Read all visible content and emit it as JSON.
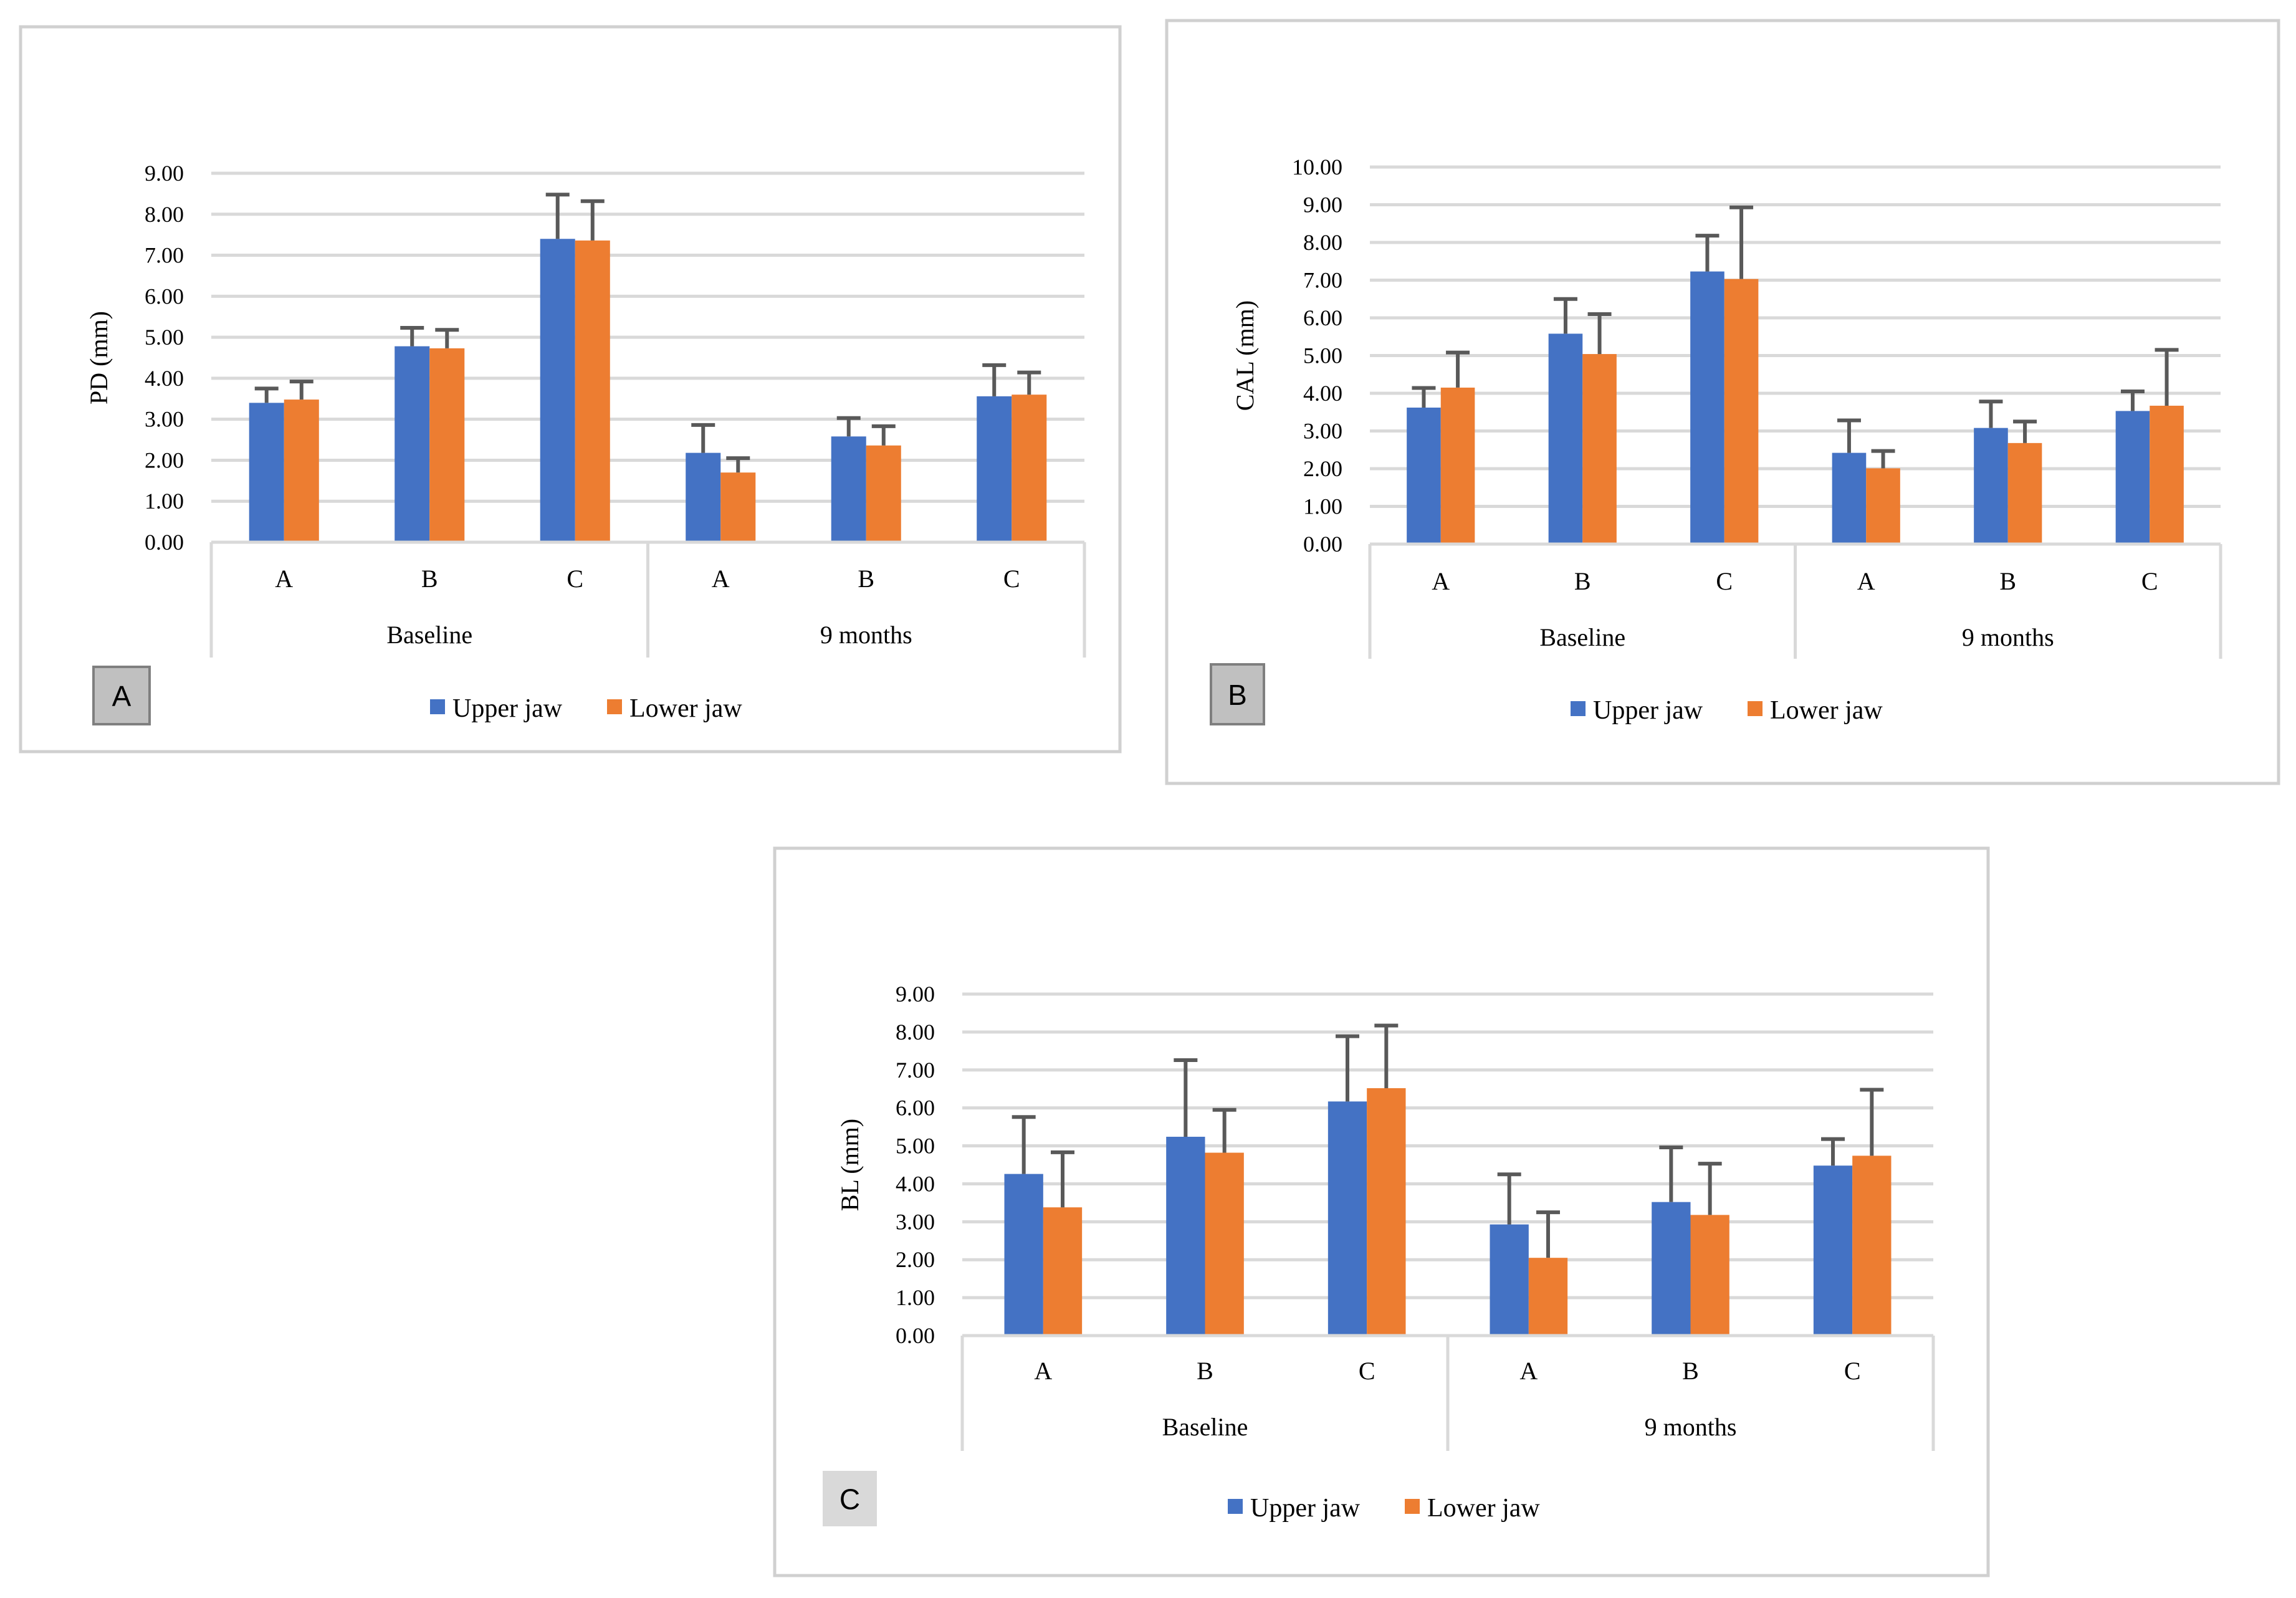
{
  "chart_data": [
    {
      "type": "bar",
      "panel_label": "A",
      "title": "",
      "xlabel": "",
      "ylabel": "PD (mm)",
      "ylim": [
        0,
        9
      ],
      "ytick_step": 1,
      "ytick_labels": [
        "0.00",
        "1.00",
        "2.00",
        "3.00",
        "4.00",
        "5.00",
        "6.00",
        "7.00",
        "8.00",
        "9.00"
      ],
      "groups": [
        "Baseline",
        "9 months"
      ],
      "categories": [
        "A",
        "B",
        "C",
        "A",
        "B",
        "C"
      ],
      "series": [
        {
          "name": "Upper jaw",
          "values": [
            3.4,
            4.78,
            7.4,
            2.18,
            2.58,
            3.56
          ],
          "errors": [
            0.35,
            0.45,
            1.08,
            0.68,
            0.45,
            0.76
          ]
        },
        {
          "name": "Lower jaw",
          "values": [
            3.48,
            4.73,
            7.36,
            1.7,
            2.36,
            3.6
          ],
          "errors": [
            0.44,
            0.45,
            0.96,
            0.35,
            0.47,
            0.54
          ]
        }
      ],
      "legend_position": "bottom"
    },
    {
      "type": "bar",
      "panel_label": "B",
      "title": "",
      "xlabel": "",
      "ylabel": "CAL (mm)",
      "ylim": [
        0,
        10
      ],
      "ytick_step": 1,
      "ytick_labels": [
        "0.00",
        "1.00",
        "2.00",
        "3.00",
        "4.00",
        "5.00",
        "6.00",
        "7.00",
        "8.00",
        "9.00",
        "10.00"
      ],
      "groups": [
        "Baseline",
        "9 months"
      ],
      "categories": [
        "A",
        "B",
        "C",
        "A",
        "B",
        "C"
      ],
      "series": [
        {
          "name": "Upper jaw",
          "values": [
            3.62,
            5.58,
            7.23,
            2.42,
            3.08,
            3.53
          ],
          "errors": [
            0.52,
            0.92,
            0.95,
            0.86,
            0.7,
            0.52
          ]
        },
        {
          "name": "Lower jaw",
          "values": [
            4.15,
            5.04,
            7.03,
            2.01,
            2.68,
            3.67
          ],
          "errors": [
            0.93,
            1.06,
            1.9,
            0.46,
            0.57,
            1.48
          ]
        }
      ],
      "legend_position": "bottom"
    },
    {
      "type": "bar",
      "panel_label": "C",
      "title": "",
      "xlabel": "",
      "ylabel": "BL (mm)",
      "ylim": [
        0,
        9
      ],
      "ytick_step": 1,
      "ytick_labels": [
        "0.00",
        "1.00",
        "2.00",
        "3.00",
        "4.00",
        "5.00",
        "6.00",
        "7.00",
        "8.00",
        "9.00"
      ],
      "groups": [
        "Baseline",
        "9 months"
      ],
      "categories": [
        "A",
        "B",
        "C",
        "A",
        "B",
        "C"
      ],
      "series": [
        {
          "name": "Upper jaw",
          "values": [
            4.26,
            5.24,
            6.17,
            2.93,
            3.52,
            4.48
          ],
          "errors": [
            1.5,
            2.02,
            1.72,
            1.32,
            1.44,
            0.7
          ]
        },
        {
          "name": "Lower jaw",
          "values": [
            3.38,
            4.82,
            6.52,
            2.05,
            3.18,
            4.74
          ],
          "errors": [
            1.45,
            1.13,
            1.65,
            1.2,
            1.35,
            1.74
          ]
        }
      ],
      "legend_position": "bottom"
    }
  ],
  "colors": {
    "upper_jaw": "#4472c4",
    "lower_jaw": "#ed7d31",
    "gridline": "#d9d9d9",
    "axis": "#d9d9d9",
    "error_bar": "#595959",
    "frame": "#d0d0d0",
    "badge_fill": "#c0c0c0",
    "badge_fill_c": "#d9d9d9",
    "badge_border": "#7f7f7f"
  }
}
